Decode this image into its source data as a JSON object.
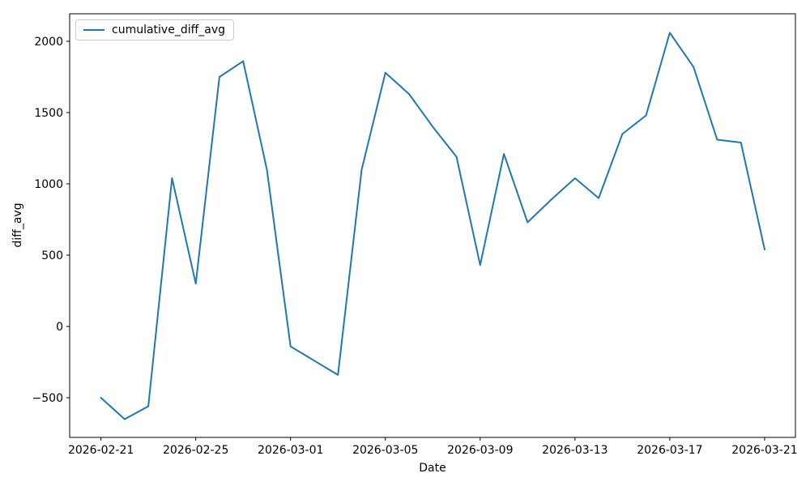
{
  "chart_data": {
    "type": "line",
    "title": "",
    "xlabel": "Date",
    "ylabel": "diff_avg",
    "grid": false,
    "background": "#ffffff",
    "spine_color": "#000000",
    "legend_position": "upper-left",
    "xticks": [
      "2026-02-21",
      "2026-02-25",
      "2026-03-01",
      "2026-03-05",
      "2026-03-09",
      "2026-03-13",
      "2026-03-17",
      "2026-03-21"
    ],
    "yticks": [
      -500,
      0,
      500,
      1000,
      1500,
      2000
    ],
    "ylim": [
      -778,
      2193
    ],
    "xlim_days_from_first": [
      -1.32,
      29.3
    ],
    "series": [
      {
        "name": "cumulative_diff_avg",
        "color": "#1f77b4",
        "x": [
          "2026-02-21",
          "2026-02-22",
          "2026-02-23",
          "2026-02-24",
          "2026-02-25",
          "2026-02-26",
          "2026-02-27",
          "2026-02-28",
          "2026-03-01",
          "2026-03-02",
          "2026-03-03",
          "2026-03-04",
          "2026-03-05",
          "2026-03-06",
          "2026-03-07",
          "2026-03-08",
          "2026-03-09",
          "2026-03-10",
          "2026-03-11",
          "2026-03-12",
          "2026-03-13",
          "2026-03-14",
          "2026-03-15",
          "2026-03-16",
          "2026-03-17",
          "2026-03-18",
          "2026-03-19",
          "2026-03-20",
          "2026-03-21"
        ],
        "values": [
          -500,
          -650,
          -560,
          1040,
          300,
          1750,
          1860,
          1100,
          -140,
          -240,
          -340,
          1100,
          1780,
          1630,
          1400,
          1190,
          430,
          1210,
          730,
          890,
          1040,
          900,
          1350,
          1480,
          2060,
          1820,
          1310,
          1290,
          540
        ]
      }
    ]
  }
}
